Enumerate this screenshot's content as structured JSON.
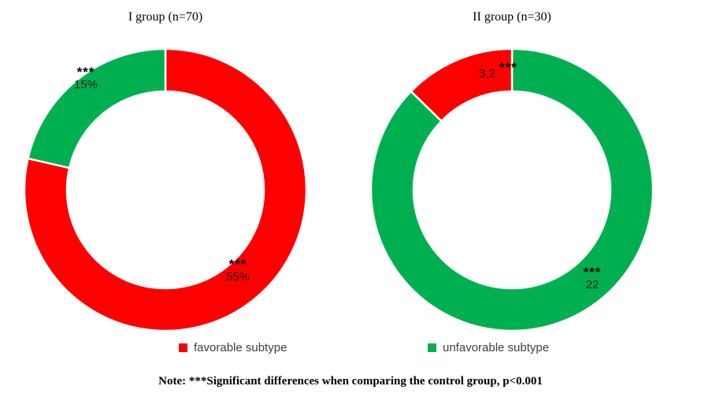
{
  "note": {
    "text": "Note: ***Significant differences when comparing the control group, p<0.001"
  },
  "legend": {
    "items": [
      {
        "label": "favorable subtype",
        "color": "#FF0000"
      },
      {
        "label": "unfavorable subtype",
        "color": "#00B050"
      }
    ]
  },
  "chart_data": [
    {
      "type": "pie",
      "subtype": "donut",
      "title": "I group (n=70)",
      "direction": "clockwise",
      "start_angle_deg": 0,
      "series": [
        {
          "name": "favorable subtype",
          "value": 55,
          "color": "#FF0000",
          "data_label": "55%",
          "significance": "***"
        },
        {
          "name": "unfavorable subtype",
          "value": 15,
          "color": "#00B050",
          "data_label": "15%",
          "significance": "***"
        }
      ]
    },
    {
      "type": "pie",
      "subtype": "donut",
      "title": "II group (n=30)",
      "direction": "clockwise",
      "start_angle_deg": 0,
      "series": [
        {
          "name": "unfavorable subtype",
          "value": 22,
          "color": "#00B050",
          "data_label": "22",
          "significance": "***"
        },
        {
          "name": "favorable subtype",
          "value": 3.2,
          "color": "#FF0000",
          "data_label": "3,2",
          "significance": "***"
        }
      ]
    }
  ]
}
